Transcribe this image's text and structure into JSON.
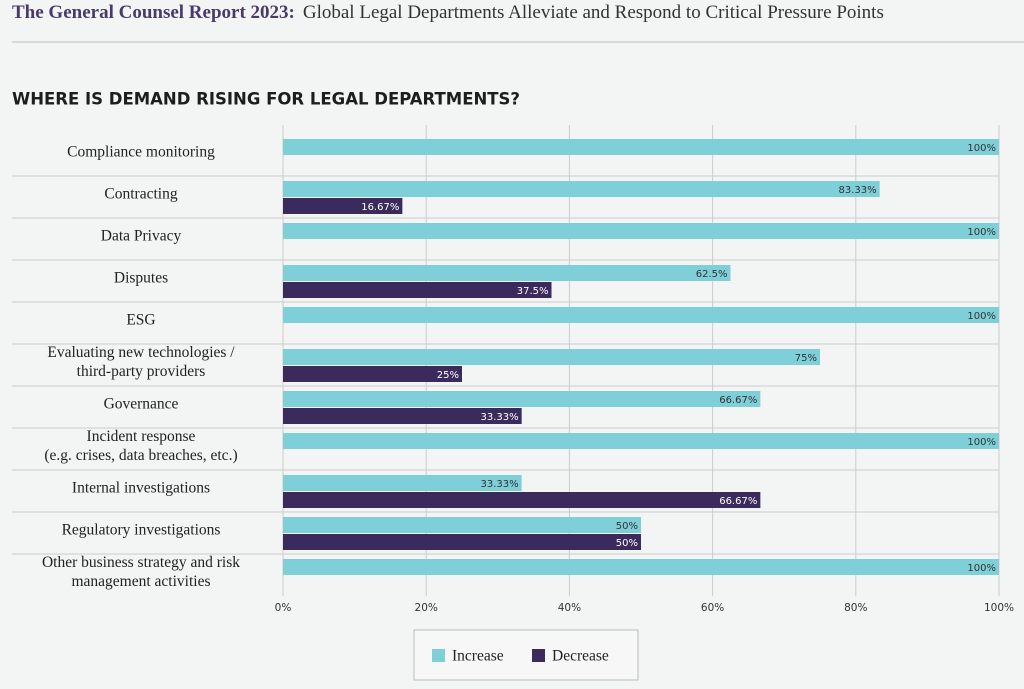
{
  "header": {
    "brand": "The General Counsel Report 2023:",
    "subtitle": "Global Legal Departments Alleviate and Respond to Critical Pressure Points"
  },
  "chart_data": {
    "type": "hbar",
    "title": "WHERE IS DEMAND RISING FOR LEGAL DEPARTMENTS?",
    "categories": [
      "Compliance monitoring",
      "Contracting",
      "Data Privacy",
      "Disputes",
      "ESG",
      "Evaluating new technologies /\nthird-party providers",
      "Governance",
      "Incident response\n(e.g. crises, data breaches, etc.)",
      "Internal investigations",
      "Regulatory investigations",
      "Other business strategy and risk\nmanagement activities"
    ],
    "series": [
      {
        "name": "Increase",
        "color": "#7ecfd8",
        "label_color": "#333333",
        "values": [
          100,
          83.33,
          100,
          62.5,
          100,
          75,
          66.67,
          100,
          33.33,
          50,
          100
        ],
        "value_labels": [
          "100%",
          "83.33%",
          "100%",
          "62.5%",
          "100%",
          "75%",
          "66.67%",
          "100%",
          "33.33%",
          "50%",
          "100%"
        ]
      },
      {
        "name": "Decrease",
        "color": "#3b2b5c",
        "label_color": "#ffffff",
        "values": [
          null,
          16.67,
          null,
          37.5,
          null,
          25,
          33.33,
          null,
          66.67,
          50,
          null
        ],
        "value_labels": [
          null,
          "16.67%",
          null,
          "37.5%",
          null,
          "25%",
          "33.33%",
          null,
          "66.67%",
          "50%",
          null
        ]
      }
    ],
    "xlim": [
      0,
      100
    ],
    "xticks": [
      {
        "value": 0,
        "label": "0%"
      },
      {
        "value": 20,
        "label": "20%"
      },
      {
        "value": 40,
        "label": "40%"
      },
      {
        "value": 60,
        "label": "60%"
      },
      {
        "value": 80,
        "label": "80%"
      },
      {
        "value": 100,
        "label": "100%"
      }
    ],
    "grid": true
  }
}
